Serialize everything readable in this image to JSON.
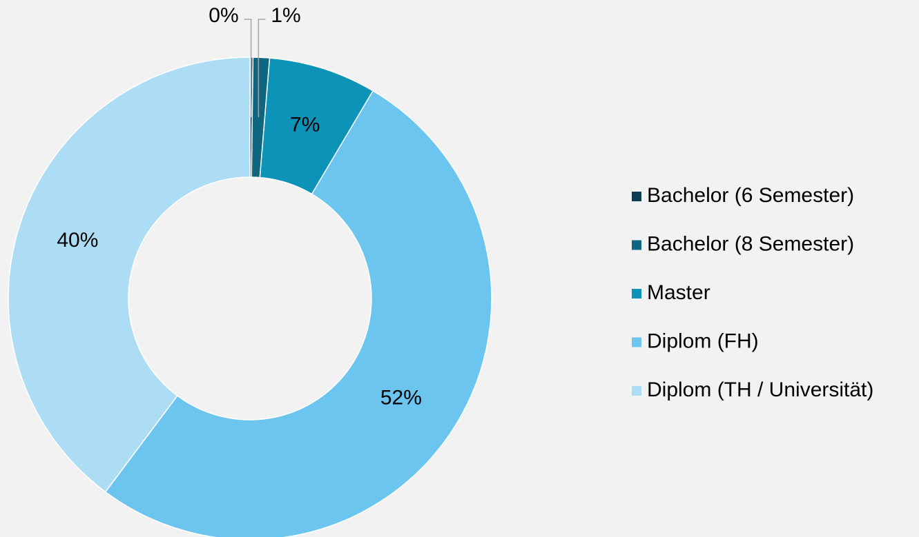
{
  "chart_data": {
    "type": "donut",
    "categories": [
      "Bachelor (6 Semester)",
      "Bachelor (8 Semester)",
      "Master",
      "Diplom (FH)",
      "Diplom (TH / Universität)"
    ],
    "values": [
      0.2,
      1.1,
      7.2,
      51.7,
      39.8
    ],
    "value_labels": [
      "0%",
      "1%",
      "7%",
      "52%",
      "40%"
    ],
    "colors": [
      "#0d3d52",
      "#0e6680",
      "#0e93b8",
      "#6bc5ef",
      "#addcf5"
    ],
    "legend": "right"
  }
}
